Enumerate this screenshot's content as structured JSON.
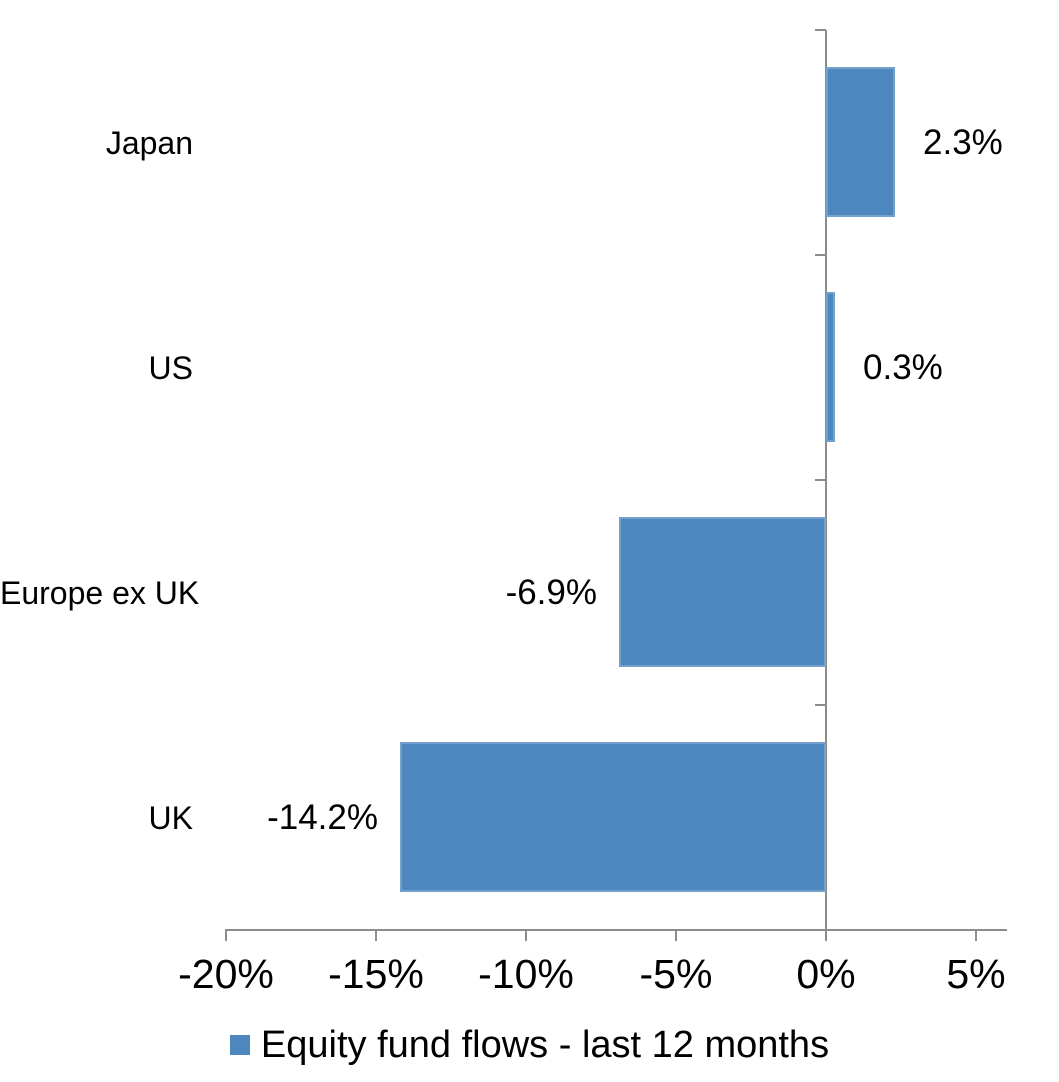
{
  "chart_data": {
    "type": "bar",
    "orientation": "horizontal",
    "title": "",
    "categories": [
      "Japan",
      "US",
      "Europe ex UK",
      "UK"
    ],
    "values": [
      2.3,
      0.3,
      -6.9,
      -14.2
    ],
    "data_labels": [
      "2.3%",
      "0.3%",
      "-6.9%",
      "-14.2%"
    ],
    "x_tick_labels": [
      "-20%",
      "-15%",
      "-10%",
      "-5%",
      "0%",
      "5%"
    ],
    "x_tick_values": [
      -20,
      -15,
      -10,
      -5,
      0,
      5
    ],
    "xlim": [
      -20,
      6
    ],
    "grid": false,
    "legend": {
      "label": "Equity fund flows - last 12 months",
      "position": "bottom"
    },
    "colors": {
      "bar": "#4E86BE",
      "axis": "#8C8C8C",
      "text": "#000000"
    }
  }
}
